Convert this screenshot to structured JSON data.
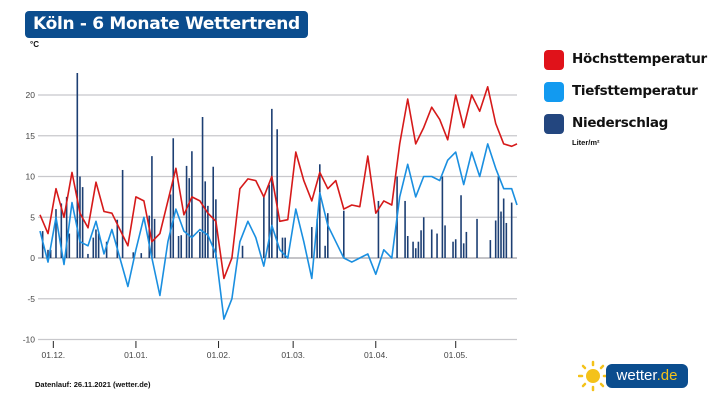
{
  "title": "Köln - 6 Monate Wettertrend",
  "footer": "Datenlauf: 26.11.2021 (wetter.de)",
  "logo": {
    "name": "wetter",
    "tld": ".de",
    "icon": "sun-icon"
  },
  "colors": {
    "title_bg": "#0b4d8e",
    "max": "#d61a1a",
    "min": "#1a8fe0",
    "precip": "#1d3f73",
    "sun": "#f4c21a"
  },
  "chart_data": {
    "type": "line",
    "ylabel": "°C",
    "ylim": [
      -10,
      23
    ],
    "yticks": [
      -10,
      -5,
      0,
      5,
      10,
      15,
      20
    ],
    "xlim": [
      "2020-11-26",
      "2021-05-24"
    ],
    "xticks": [
      {
        "date": "2020-12-01",
        "label": "01.12."
      },
      {
        "date": "2021-01-01",
        "label": "01.01."
      },
      {
        "date": "2021-02-01",
        "label": "01.02."
      },
      {
        "date": "2021-03-01",
        "label": "01.03."
      },
      {
        "date": "2021-04-01",
        "label": "01.04."
      },
      {
        "date": "2021-05-01",
        "label": "01.05."
      }
    ],
    "grid": true,
    "legend_position": "right",
    "dates": [
      "2020-11-26",
      "2020-11-29",
      "2020-12-02",
      "2020-12-05",
      "2020-12-08",
      "2020-12-11",
      "2020-12-14",
      "2020-12-17",
      "2020-12-20",
      "2020-12-23",
      "2020-12-26",
      "2020-12-29",
      "2021-01-01",
      "2021-01-04",
      "2021-01-07",
      "2021-01-10",
      "2021-01-13",
      "2021-01-16",
      "2021-01-19",
      "2021-01-22",
      "2021-01-25",
      "2021-01-28",
      "2021-01-31",
      "2021-02-03",
      "2021-02-06",
      "2021-02-09",
      "2021-02-12",
      "2021-02-15",
      "2021-02-18",
      "2021-02-21",
      "2021-02-24",
      "2021-02-27",
      "2021-03-02",
      "2021-03-05",
      "2021-03-08",
      "2021-03-11",
      "2021-03-14",
      "2021-03-17",
      "2021-03-20",
      "2021-03-23",
      "2021-03-26",
      "2021-03-29",
      "2021-04-01",
      "2021-04-04",
      "2021-04-07",
      "2021-04-10",
      "2021-04-13",
      "2021-04-16",
      "2021-04-19",
      "2021-04-22",
      "2021-04-25",
      "2021-04-28",
      "2021-05-01",
      "2021-05-04",
      "2021-05-07",
      "2021-05-10",
      "2021-05-13",
      "2021-05-16",
      "2021-05-19",
      "2021-05-22",
      "2021-05-24"
    ],
    "series": [
      {
        "name": "Höchsttemperatur",
        "color": "#d61a1a",
        "values": [
          5.3,
          3,
          8.5,
          5,
          10.5,
          5.5,
          3.7,
          9.3,
          5.7,
          5.5,
          3.5,
          1.5,
          7.5,
          7,
          2,
          3,
          7,
          11,
          5.3,
          7.5,
          7,
          5.5,
          4.5,
          -2.5,
          0,
          8.5,
          9.7,
          9.5,
          7.5,
          10,
          4.5,
          4.7,
          13,
          9.5,
          7,
          10.5,
          8.5,
          9.5,
          6,
          6.5,
          6.3,
          12.5,
          5.5,
          7,
          6.5,
          14,
          19.5,
          14,
          16,
          18.5,
          17,
          14.5,
          20,
          16,
          20,
          18,
          21,
          16.5,
          14,
          13.7,
          14
        ]
      },
      {
        "name": "Tiefsttemperatur",
        "color": "#1a8fe0",
        "values": [
          3.3,
          -0.5,
          5,
          -0.8,
          6.8,
          2,
          1.5,
          4.5,
          0.5,
          3.5,
          0,
          -3.5,
          1,
          5,
          0,
          -4.6,
          2,
          6,
          3.3,
          2.5,
          3.5,
          2.8,
          0.5,
          -7.5,
          -5,
          2,
          4.5,
          2.5,
          -1,
          4,
          1,
          0,
          6,
          2,
          -2.5,
          8,
          4,
          2,
          0,
          -0.5,
          0,
          0.5,
          -2,
          1,
          0,
          7.5,
          11.5,
          7.5,
          10,
          10,
          9.5,
          12,
          13,
          9,
          13,
          10,
          14,
          11,
          8.5,
          8.5,
          6.5
        ]
      }
    ],
    "precipitation": {
      "name": "Niederschlag",
      "unit": "Liter/m²",
      "color": "#1d3f73",
      "bars": [
        [
          "2020-11-27",
          3.3
        ],
        [
          "2020-11-29",
          1
        ],
        [
          "2020-11-30",
          1
        ],
        [
          "2020-12-02",
          6
        ],
        [
          "2020-12-04",
          6.7
        ],
        [
          "2020-12-06",
          7.5
        ],
        [
          "2020-12-07",
          3
        ],
        [
          "2020-12-10",
          22.7
        ],
        [
          "2020-12-11",
          10
        ],
        [
          "2020-12-12",
          8.7
        ],
        [
          "2020-12-14",
          0.5
        ],
        [
          "2020-12-16",
          2.5
        ],
        [
          "2020-12-17",
          3.5
        ],
        [
          "2020-12-18",
          3
        ],
        [
          "2020-12-21",
          2
        ],
        [
          "2020-12-25",
          4.7
        ],
        [
          "2020-12-27",
          10.8
        ],
        [
          "2020-12-31",
          0.7
        ],
        [
          "2021-01-03",
          0.6
        ],
        [
          "2021-01-06",
          5.2
        ],
        [
          "2021-01-07",
          12.5
        ],
        [
          "2021-01-08",
          4.8
        ],
        [
          "2021-01-14",
          7.8
        ],
        [
          "2021-01-15",
          14.7
        ],
        [
          "2021-01-17",
          2.7
        ],
        [
          "2021-01-18",
          2.8
        ],
        [
          "2021-01-20",
          11.3
        ],
        [
          "2021-01-21",
          9.8
        ],
        [
          "2021-01-22",
          13.1
        ],
        [
          "2021-01-25",
          3.2
        ],
        [
          "2021-01-26",
          17.3
        ],
        [
          "2021-01-27",
          9.4
        ],
        [
          "2021-01-28",
          6.4
        ],
        [
          "2021-01-30",
          11.2
        ],
        [
          "2021-01-31",
          7.2
        ],
        [
          "2021-02-10",
          1.5
        ],
        [
          "2021-02-18",
          7.5
        ],
        [
          "2021-02-20",
          9
        ],
        [
          "2021-02-21",
          18.3
        ],
        [
          "2021-02-23",
          15.8
        ],
        [
          "2021-02-25",
          2.5
        ],
        [
          "2021-02-26",
          2.5
        ],
        [
          "2021-03-08",
          3.8
        ],
        [
          "2021-03-10",
          4.8
        ],
        [
          "2021-03-11",
          11.5
        ],
        [
          "2021-03-13",
          1.5
        ],
        [
          "2021-03-14",
          5.5
        ],
        [
          "2021-03-20",
          5.8
        ],
        [
          "2021-04-02",
          7
        ],
        [
          "2021-04-09",
          10
        ],
        [
          "2021-04-12",
          7
        ],
        [
          "2021-04-13",
          2.7
        ],
        [
          "2021-04-15",
          2
        ],
        [
          "2021-04-16",
          1.2
        ],
        [
          "2021-04-17",
          2
        ],
        [
          "2021-04-18",
          3.4
        ],
        [
          "2021-04-19",
          5
        ],
        [
          "2021-04-22",
          3.5
        ],
        [
          "2021-04-24",
          3
        ],
        [
          "2021-04-26",
          10
        ],
        [
          "2021-04-27",
          4
        ],
        [
          "2021-04-30",
          2
        ],
        [
          "2021-05-01",
          2.3
        ],
        [
          "2021-05-03",
          7.7
        ],
        [
          "2021-05-04",
          1.8
        ],
        [
          "2021-05-05",
          3.2
        ],
        [
          "2021-05-09",
          4.8
        ],
        [
          "2021-05-14",
          2.2
        ],
        [
          "2021-05-16",
          4.6
        ],
        [
          "2021-05-17",
          10
        ],
        [
          "2021-05-18",
          5.7
        ],
        [
          "2021-05-19",
          7.3
        ],
        [
          "2021-05-20",
          4.3
        ],
        [
          "2021-05-22",
          6.8
        ]
      ]
    }
  }
}
